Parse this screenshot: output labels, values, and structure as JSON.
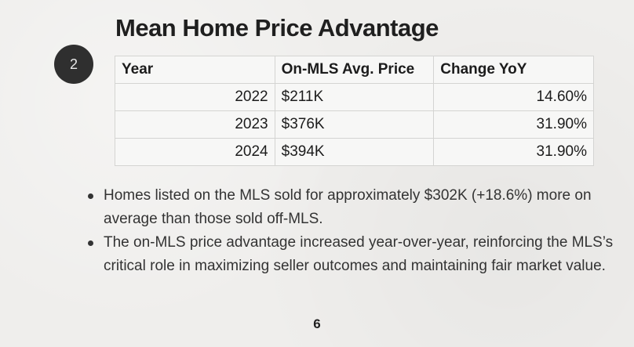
{
  "title": "Mean Home Price Advantage",
  "step_number": "2",
  "table": {
    "headers": [
      "Year",
      "On-MLS Avg. Price",
      "Change YoY"
    ],
    "rows": [
      [
        "2022",
        "$211K",
        "14.60%"
      ],
      [
        "2023",
        "$376K",
        "31.90%"
      ],
      [
        "2024",
        "$394K",
        "31.90%"
      ]
    ]
  },
  "bullets": [
    "Homes listed on the MLS sold for approximately $302K (+18.6%) more on average than those sold off-MLS.",
    "The on-MLS price advantage increased year-over-year, reinforcing the MLS’s critical role in maximizing seller outcomes and maintaining fair market value."
  ],
  "page_number": "6"
}
